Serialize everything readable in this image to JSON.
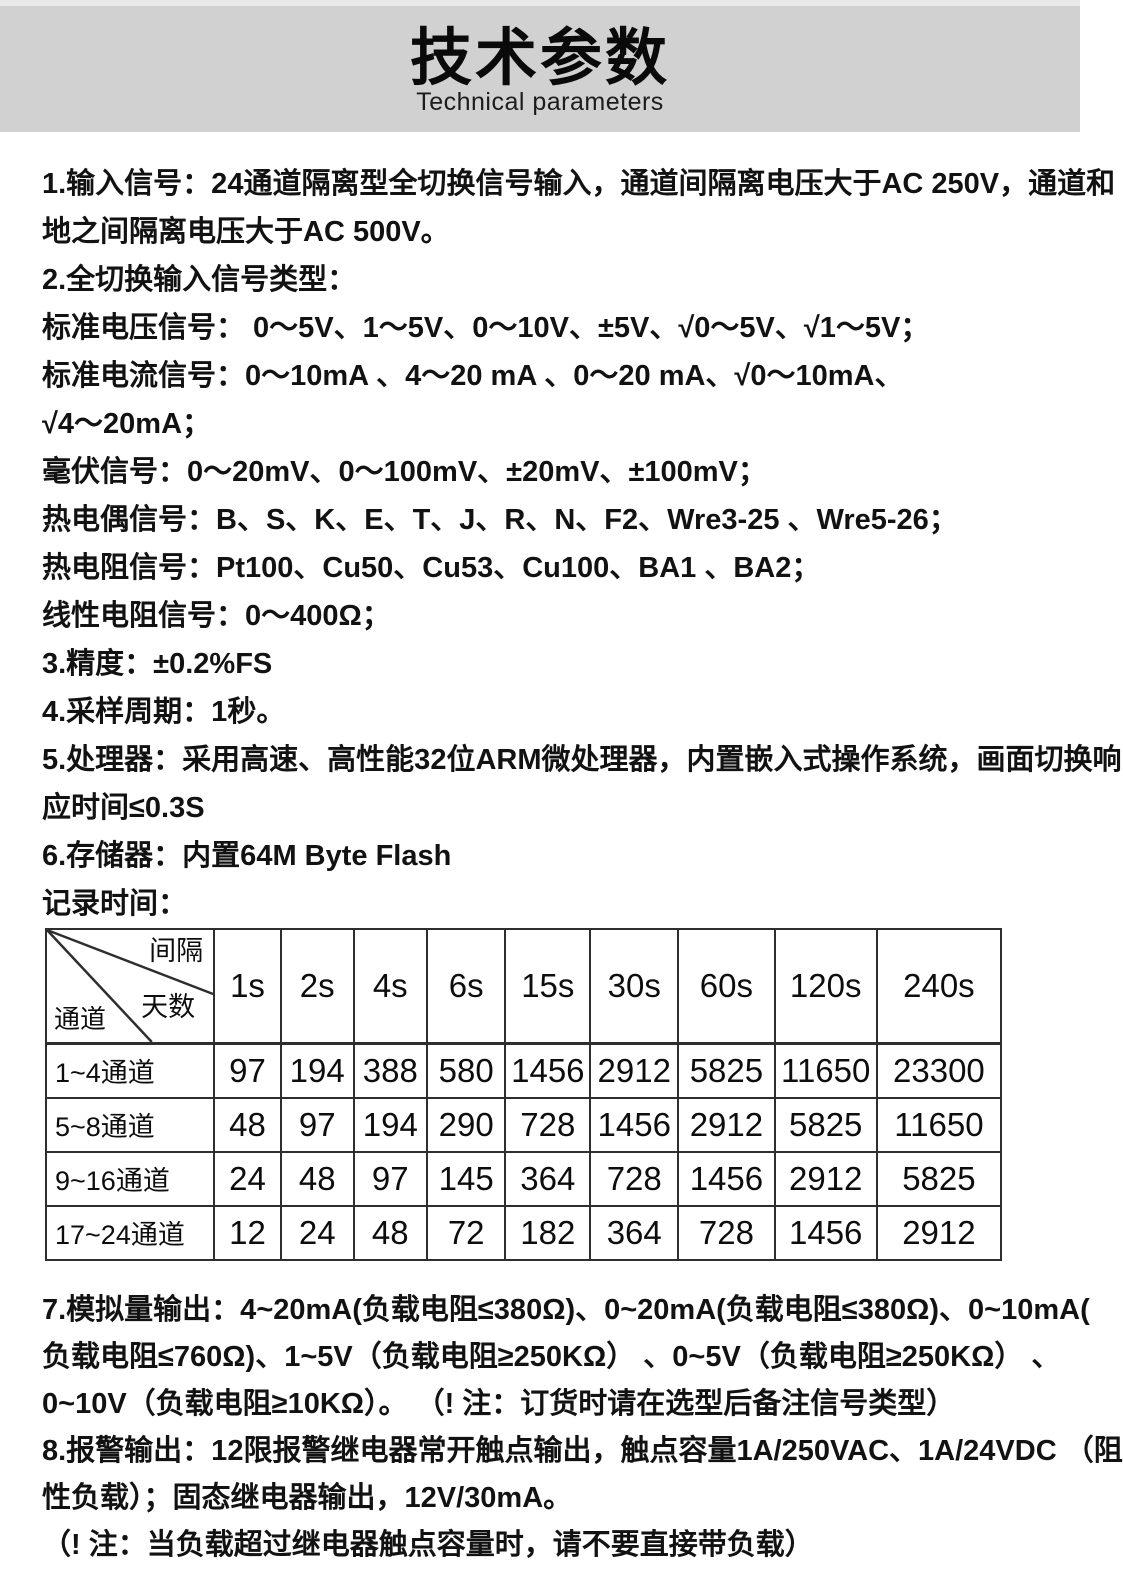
{
  "header": {
    "title": "技术参数",
    "subtitle": "Technical parameters"
  },
  "specs_before_table": [
    "1.输入信号：24通道隔离型全切换信号输入，通道间隔离电压大于AC 250V，通道和",
    "地之间隔离电压大于AC 500V。",
    "2.全切换输入信号类型：",
    "标准电压信号： 0～5V、1～5V、0～10V、±5V、√0～5V、√1～5V；",
    "标准电流信号：0～10mA 、4～20 mA 、0～20 mA、√0～10mA、",
    "√4～20mA；",
    "毫伏信号：0～20mV、0～100mV、±20mV、±100mV；",
    "热电偶信号：B、S、K、E、T、J、R、N、F2、Wre3-25 、Wre5-26；",
    "热电阻信号：Pt100、Cu50、Cu53、Cu100、BA1 、BA2；",
    "线性电阻信号：0～400Ω；",
    "3.精度：±0.2%FS",
    "4.采样周期：1秒。",
    "5.处理器：采用高速、高性能32位ARM微处理器，内置嵌入式操作系统，画面切换响",
    "应时间≤0.3S",
    "6.存储器：内置64M Byte Flash",
    "记录时间："
  ],
  "record_table": {
    "corner": {
      "top_right": "间隔",
      "middle": "天数",
      "bottom_left": "通道"
    },
    "columns": [
      "1s",
      "2s",
      "4s",
      "6s",
      "15s",
      "30s",
      "60s",
      "120s",
      "240s"
    ],
    "rows": [
      {
        "label": "1~4通道",
        "values": [
          "97",
          "194",
          "388",
          "580",
          "1456",
          "2912",
          "5825",
          "11650",
          "23300"
        ]
      },
      {
        "label": "5~8通道",
        "values": [
          "48",
          "97",
          "194",
          "290",
          "728",
          "1456",
          "2912",
          "5825",
          "11650"
        ]
      },
      {
        "label": "9~16通道",
        "values": [
          "24",
          "48",
          "97",
          "145",
          "364",
          "728",
          "1456",
          "2912",
          "5825"
        ]
      },
      {
        "label": "17~24通道",
        "values": [
          "12",
          "24",
          "48",
          "72",
          "182",
          "364",
          "728",
          "1456",
          "2912"
        ]
      }
    ]
  },
  "specs_after_table": [
    "7.模拟量输出：4~20mA(负载电阻≤380Ω)、0~20mA(负载电阻≤380Ω)、0~10mA(",
    "负载电阻≤760Ω)、1~5V（负载电阻≥250KΩ） 、0~5V（负载电阻≥250KΩ） 、",
    "0~10V（负载电阻≥10KΩ）。 （! 注：订货时请在选型后备注信号类型）",
    "8.报警输出：12限报警继电器常开触点输出，触点容量1A/250VAC、1A/24VDC （阻",
    "性负载）；固态继电器输出，12V/30mA。",
    "（! 注：当负载超过继电器触点容量时，请不要直接带负载）"
  ],
  "colors": {
    "header_band": "#d1d1d1",
    "text": "#111111",
    "table_border": "#2e2e2e"
  }
}
